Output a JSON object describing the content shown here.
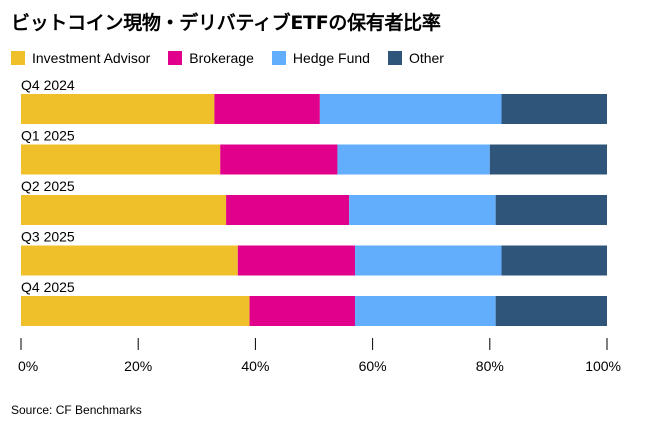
{
  "title": "ビットコイン現物・デリバティブETFの保有者比率",
  "source": "Source: CF Benchmarks",
  "chart_data": {
    "type": "bar",
    "orientation": "horizontal",
    "stacked": true,
    "normalized": true,
    "categories": [
      "Q4 2024",
      "Q1 2025",
      "Q2 2025",
      "Q3 2025",
      "Q4 2025"
    ],
    "series": [
      {
        "name": "Investment Advisor",
        "color": "#f0c02a",
        "values": [
          33,
          34,
          35,
          37,
          39
        ]
      },
      {
        "name": "Brokerage",
        "color": "#e0008c",
        "values": [
          18,
          20,
          21,
          20,
          18
        ]
      },
      {
        "name": "Hedge Fund",
        "color": "#63aefc",
        "values": [
          31,
          26,
          25,
          25,
          24
        ]
      },
      {
        "name": "Other",
        "color": "#2f567a",
        "values": [
          18,
          20,
          19,
          18,
          19
        ]
      }
    ],
    "xlim": [
      0,
      100
    ],
    "xticks": [
      0,
      20,
      40,
      60,
      80,
      100
    ],
    "xtick_labels": [
      "0%",
      "20%",
      "40%",
      "60%",
      "80%",
      "100%"
    ],
    "legend_position": "top-left"
  }
}
